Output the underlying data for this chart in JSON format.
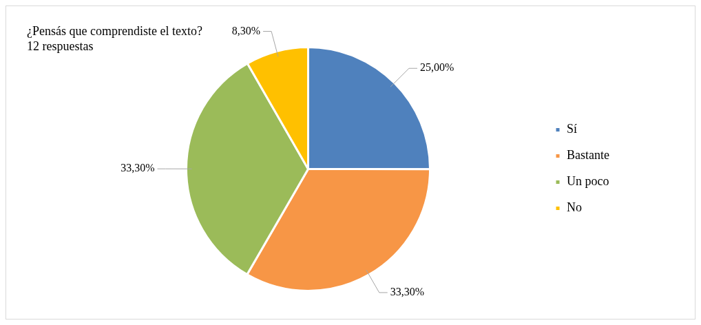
{
  "chart_data": {
    "type": "pie",
    "title": "¿Pensás que comprendiste el texto?",
    "subtitle": "12 respuestas",
    "categories": [
      "Sí",
      "Bastante",
      "Un poco",
      "No"
    ],
    "values": [
      25,
      33.3,
      33.3,
      8.3
    ],
    "colors": [
      "#4f81bd",
      "#f79646",
      "#9bbb59",
      "#ffc000"
    ],
    "value_labels": [
      "25,00%",
      "33,30%",
      "33,30%",
      "8,30%"
    ],
    "legend": "right"
  }
}
